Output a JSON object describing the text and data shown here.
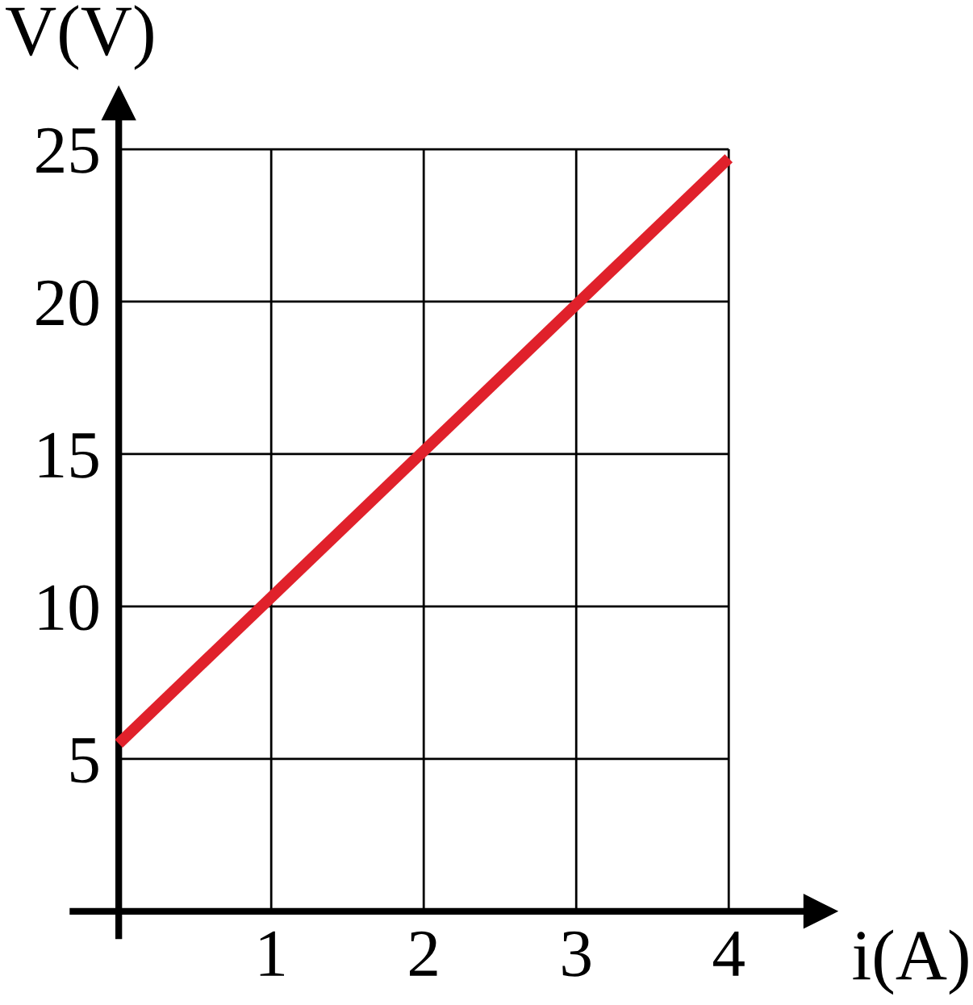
{
  "chart_data": {
    "type": "line",
    "xlabel": "i(A)",
    "ylabel": "V(V)",
    "x": [
      0,
      4
    ],
    "series": [
      {
        "color": "#e0212b",
        "values": [
          5.5,
          24.7
        ]
      }
    ],
    "xlim": [
      -0.3,
      4.6
    ],
    "ylim": [
      -0.8,
      26.5
    ],
    "xticks": [
      1,
      2,
      3,
      4
    ],
    "yticks": [
      5,
      10,
      15,
      20,
      25
    ],
    "grid": true,
    "marker": "none",
    "line_style": "solid",
    "legend": false
  }
}
